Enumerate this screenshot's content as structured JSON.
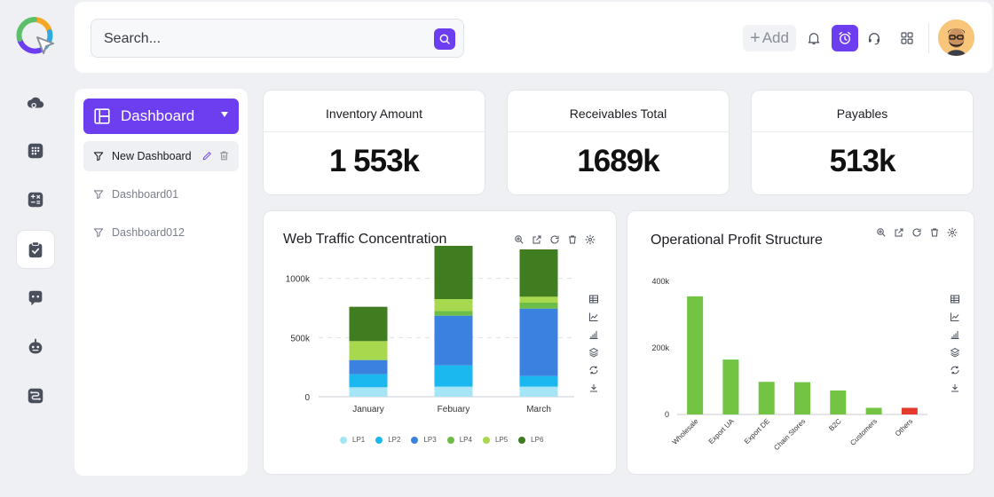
{
  "search": {
    "placeholder": "Search..."
  },
  "topbar": {
    "add_label": "Add"
  },
  "sidebar": {
    "main_label": "Dashboard",
    "items": [
      {
        "label": "New Dashboard"
      },
      {
        "label": "Dashboard01"
      },
      {
        "label": "Dashboard012"
      }
    ]
  },
  "kpis": [
    {
      "title": "Inventory Amount",
      "value": "1 553k"
    },
    {
      "title": "Receivables Total",
      "value": "1689k"
    },
    {
      "title": "Payables",
      "value": "513k"
    }
  ],
  "colors": {
    "accent": "#6c3ef0",
    "lp1": "#a6e5f5",
    "lp2": "#1ab8ef",
    "lp3": "#3b82e0",
    "lp4": "#6cbd45",
    "lp5": "#a8d84e",
    "lp6": "#3f7d20",
    "bar_green": "#74c444",
    "bar_red": "#e33c2f"
  },
  "chart_data": [
    {
      "type": "bar",
      "stacked": true,
      "title": "Web Traffic Concentration",
      "categories": [
        "January",
        "Febuary",
        "March"
      ],
      "series": [
        {
          "name": "LP1",
          "values": [
            80,
            85,
            85
          ]
        },
        {
          "name": "LP2",
          "values": [
            110,
            180,
            90
          ]
        },
        {
          "name": "LP3",
          "values": [
            120,
            420,
            570
          ]
        },
        {
          "name": "LP4",
          "values": [
            0,
            40,
            50
          ]
        },
        {
          "name": "LP5",
          "values": [
            160,
            100,
            50
          ]
        },
        {
          "name": "LP6",
          "values": [
            290,
            450,
            400
          ]
        }
      ],
      "ylim": [
        0,
        1200
      ],
      "yticks": [
        0,
        500,
        1000
      ],
      "ytick_labels": [
        "0",
        "500k",
        "1000k"
      ],
      "grid": true,
      "legend": "bottom"
    },
    {
      "type": "bar",
      "title": "Operational Profit Structure",
      "categories": [
        "Wholesale",
        "Export UA",
        "Export DE",
        "Chain Stores",
        "B2C",
        "Customers",
        "Others"
      ],
      "values": [
        355,
        165,
        98,
        97,
        72,
        20,
        20
      ],
      "colors_idx": [
        "bar_green",
        "bar_green",
        "bar_green",
        "bar_green",
        "bar_green",
        "bar_green",
        "bar_red"
      ],
      "ylim": [
        0,
        400
      ],
      "yticks": [
        0,
        200,
        400
      ],
      "ytick_labels": [
        "0",
        "200k",
        "400k"
      ],
      "grid": false
    }
  ]
}
